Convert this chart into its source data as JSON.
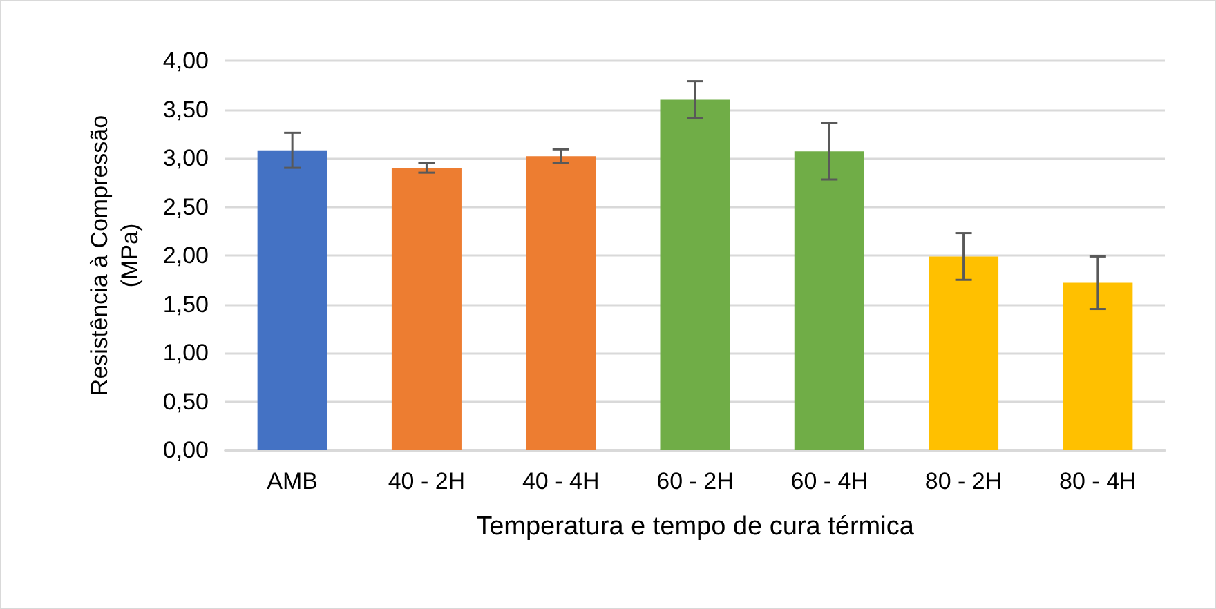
{
  "chart_data": {
    "type": "bar",
    "xlabel": "Temperatura e tempo de cura térmica",
    "ylabel": "Resistência à Compressão (MPa)",
    "categories": [
      "AMB",
      "40 - 2H",
      "40 - 4H",
      "60 - 2H",
      "60 - 4H",
      "80 - 2H",
      "80 - 4H"
    ],
    "values": [
      3.08,
      2.9,
      3.02,
      3.6,
      3.07,
      1.99,
      1.72
    ],
    "colors": [
      "#4472c4",
      "#ed7d31",
      "#ed7d31",
      "#70ad47",
      "#70ad47",
      "#ffc000",
      "#ffc000"
    ],
    "errors": [
      0.18,
      0.05,
      0.07,
      0.19,
      0.29,
      0.24,
      0.27
    ],
    "ylim": [
      0,
      4
    ],
    "yticks": [
      {
        "value": 0,
        "label": "0,00"
      },
      {
        "value": 0.5,
        "label": "0,50"
      },
      {
        "value": 1,
        "label": "1,00"
      },
      {
        "value": 1.5,
        "label": "1,50"
      },
      {
        "value": 2,
        "label": "2,00"
      },
      {
        "value": 2.5,
        "label": "2,50"
      },
      {
        "value": 3,
        "label": "3,00"
      },
      {
        "value": 3.5,
        "label": "3,50"
      },
      {
        "value": 4,
        "label": "4,00"
      }
    ],
    "grid": "y"
  }
}
